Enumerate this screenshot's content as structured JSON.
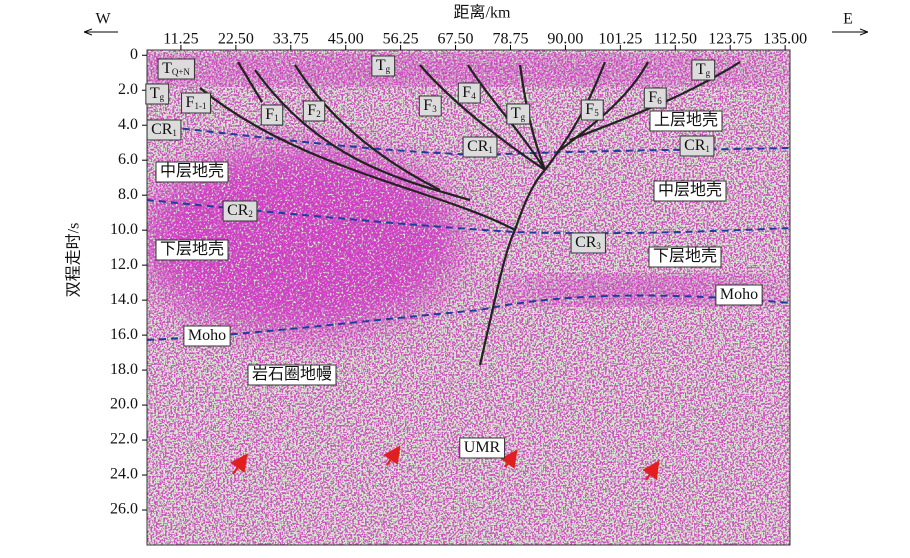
{
  "chart_data": {
    "type": "seismic-section",
    "x_label": "距离/km",
    "y_label": "双程走时/s",
    "west_label": "W",
    "east_label": "E",
    "xlim": [
      4.3,
      136.0
    ],
    "xticks": [
      11.25,
      {
        "value": 22.5,
        "label": "22.50"
      },
      33.75,
      {
        "value": 45,
        "label": "45.00"
      },
      56.25,
      {
        "value": 67.5,
        "label": "67.50"
      },
      78.75,
      {
        "value": 90,
        "label": "90.00"
      },
      101.25,
      {
        "value": 112.5,
        "label": "112.50"
      },
      123.75,
      {
        "value": 135,
        "label": "135.00"
      }
    ],
    "ylim": [
      -0.3,
      28.0
    ],
    "yticks": [
      0,
      {
        "value": 2,
        "label": "2.0"
      },
      {
        "value": 4,
        "label": "4.0"
      },
      {
        "value": 6,
        "label": "6.0"
      },
      {
        "value": 8,
        "label": "8.0"
      },
      {
        "value": 10,
        "label": "10.0"
      },
      {
        "value": 12,
        "label": "12.0"
      },
      {
        "value": 14,
        "label": "14.0"
      },
      {
        "value": 16,
        "label": "16.0"
      },
      {
        "value": 18,
        "label": "18.0"
      },
      {
        "value": 20,
        "label": "20.0"
      },
      {
        "value": 22,
        "label": "22.0"
      },
      {
        "value": 24,
        "label": "24.0"
      },
      {
        "value": 26,
        "label": "26.0"
      }
    ],
    "annotations": [
      {
        "main": "T",
        "sub": "Q+N"
      },
      {
        "main": "T",
        "sub": "g"
      },
      {
        "main": "T",
        "sub": "g"
      },
      {
        "main": "T",
        "sub": "g"
      },
      {
        "main": "F",
        "sub": "1-1"
      },
      {
        "main": "F",
        "sub": "1"
      },
      {
        "main": "F",
        "sub": "2"
      },
      {
        "main": "F",
        "sub": "3"
      },
      {
        "main": "F",
        "sub": "4"
      },
      {
        "main": "T",
        "sub": "g"
      },
      {
        "main": "F",
        "sub": "5"
      },
      {
        "main": "F",
        "sub": "6"
      },
      {
        "main": "CR",
        "sub": "1"
      },
      {
        "main": "CR",
        "sub": "1"
      },
      {
        "main": "CR",
        "sub": "1"
      },
      {
        "main": "CR",
        "sub": "2"
      },
      {
        "main": "CR",
        "sub": "3"
      },
      {
        "main": "上层地壳"
      },
      {
        "main": "中层地壳"
      },
      {
        "main": "中层地壳"
      },
      {
        "main": "下层地壳"
      },
      {
        "main": "下层地壳"
      },
      {
        "main": "Moho"
      },
      {
        "main": "Moho"
      },
      {
        "main": "岩石圈地幔"
      },
      {
        "main": "UMR"
      }
    ]
  }
}
